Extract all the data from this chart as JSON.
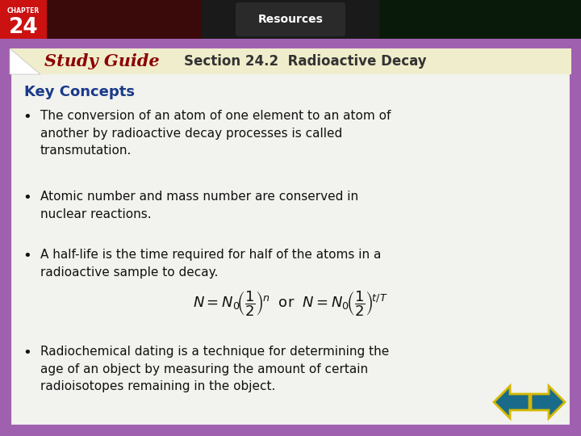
{
  "title": "Section 24.2  Radioactive Decay",
  "study_guide_text": "Study Guide",
  "key_concepts_label": "Key Concepts",
  "chapter_num": "24",
  "chapter_label": "CHAPTER",
  "resources_label": "Resources",
  "bullet1": "The conversion of an atom of one element to an atom of\nanother by radioactive decay processes is called\ntransmutation.",
  "bullet2": "Atomic number and mass number are conserved in\nnuclear reactions.",
  "bullet3": "A half-life is the time required for half of the atoms in a\nradioactive sample to decay.",
  "bullet4": "Radiochemical dating is a technique for determining the\nage of an object by measuring the amount of certain\nradioisotopes remaining in the object.",
  "bg_outer": "#a060b0",
  "bg_inner": "#f2f2ee",
  "header_bg": "#f0edcc",
  "study_guide_color": "#8b0000",
  "title_color": "#333333",
  "key_concepts_color": "#1a3a8a",
  "bullet_color": "#111111",
  "chapter_bg": "#cc1111",
  "resources_text_color": "#ffffff",
  "border_color": "#a060b0",
  "arrow_fill": "#1a6b8a",
  "arrow_edge": "#d4b800"
}
